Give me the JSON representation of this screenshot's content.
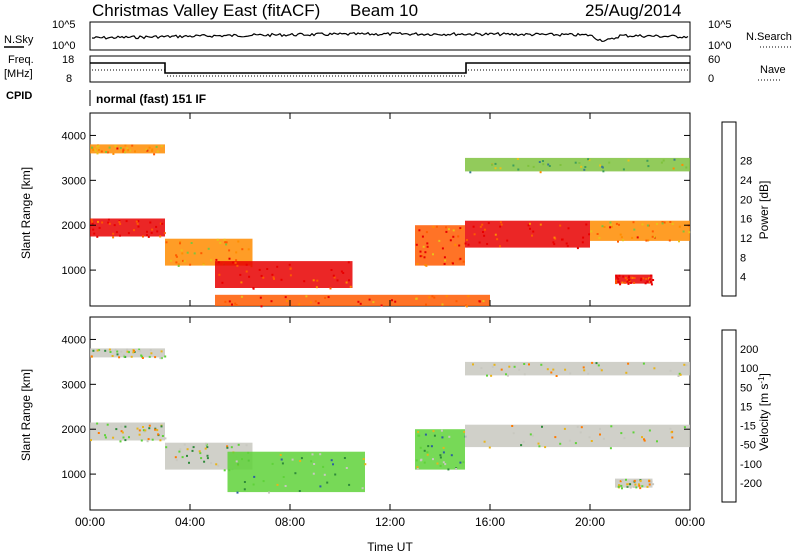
{
  "header": {
    "station": "Christmas Valley East (fitACF)",
    "beam": "Beam 10",
    "date": "25/Aug/2014"
  },
  "strip": {
    "nsky_label": "N.Sky",
    "nsky_ticks": [
      "10^5",
      "10^0"
    ],
    "nsearch_label": "N.Search",
    "nsearch_ticks": [
      "10^5",
      "10^0"
    ],
    "freq_label": "Freq.",
    "freq_unit": "[MHz]",
    "freq_ticks": [
      "18",
      "8"
    ],
    "nave_label": "Nave",
    "nave_ticks": [
      "60",
      "0"
    ],
    "cpid_label": "CPID",
    "cpid_value": "normal (fast) 151 IF"
  },
  "chart_data": [
    {
      "type": "heatmap",
      "panel": "power",
      "ylabel": "Slant Range [km]",
      "xlabel": "",
      "ylim": [
        200,
        4500
      ],
      "yticks": [
        1000,
        2000,
        3000,
        4000
      ],
      "colorbar": {
        "label": "Power [dB]",
        "ticks": [
          4,
          8,
          12,
          16,
          20,
          24,
          28
        ],
        "colors": [
          "#1a1aff",
          "#2d4fb0",
          "#3d7c8c",
          "#3f9e5a",
          "#7fc23e",
          "#e8c21a",
          "#ff8c00",
          "#ff5a00",
          "#e80000"
        ]
      },
      "bands": [
        {
          "t": [
            0.0,
            3.0
          ],
          "range": [
            3600,
            3800
          ],
          "dB": 20
        },
        {
          "t": [
            0.0,
            3.0
          ],
          "range": [
            1750,
            2150
          ],
          "dB": 26
        },
        {
          "t": [
            3.0,
            6.5
          ],
          "range": [
            1100,
            1700
          ],
          "dB": 22
        },
        {
          "t": [
            5.0,
            10.5
          ],
          "range": [
            600,
            1200
          ],
          "dB": 26
        },
        {
          "t": [
            13.0,
            15.0
          ],
          "range": [
            1100,
            2000
          ],
          "dB": 24
        },
        {
          "t": [
            15.0,
            20.0
          ],
          "range": [
            1500,
            2100
          ],
          "dB": 27
        },
        {
          "t": [
            20.0,
            24.0
          ],
          "range": [
            1650,
            2100
          ],
          "dB": 22
        },
        {
          "t": [
            21.0,
            22.5
          ],
          "range": [
            700,
            900
          ],
          "dB": 27
        },
        {
          "t": [
            15.0,
            24.0
          ],
          "range": [
            3200,
            3500
          ],
          "dB": 14
        },
        {
          "t": [
            5.0,
            16.0
          ],
          "range": [
            200,
            450
          ],
          "dB": 24
        }
      ]
    },
    {
      "type": "heatmap",
      "panel": "velocity",
      "ylabel": "Slant Range [km]",
      "xlabel": "Time UT",
      "ylim": [
        200,
        4500
      ],
      "yticks": [
        1000,
        2000,
        3000,
        4000
      ],
      "xticks": [
        "00:00",
        "04:00",
        "08:00",
        "12:00",
        "16:00",
        "20:00",
        "00:00"
      ],
      "colorbar": {
        "label": "Velocity [m s^-1]",
        "ticks": [
          200,
          100,
          50,
          15,
          -15,
          -50,
          -100,
          -200
        ],
        "colors": [
          "#1e1eb4",
          "#2d5fa0",
          "#2f8a3a",
          "#5fd23a",
          "#c8c8c0",
          "#e8b41a",
          "#ff7a00",
          "#ff3c00",
          "#e80000"
        ]
      },
      "bands": [
        {
          "t": [
            0.0,
            3.0
          ],
          "range": [
            1750,
            2150
          ],
          "v": 0
        },
        {
          "t": [
            3.0,
            6.5
          ],
          "range": [
            1100,
            1700
          ],
          "v": 0
        },
        {
          "t": [
            5.5,
            11.0
          ],
          "range": [
            600,
            1500
          ],
          "v": 40
        },
        {
          "t": [
            13.0,
            15.0
          ],
          "range": [
            1100,
            2000
          ],
          "v": 30
        },
        {
          "t": [
            15.0,
            24.0
          ],
          "range": [
            1600,
            2100
          ],
          "v": 0
        },
        {
          "t": [
            15.0,
            24.0
          ],
          "range": [
            3200,
            3500
          ],
          "v": 0
        },
        {
          "t": [
            21.0,
            22.5
          ],
          "range": [
            700,
            900
          ],
          "v": 0
        },
        {
          "t": [
            0.0,
            3.0
          ],
          "range": [
            3600,
            3800
          ],
          "v": 0
        }
      ]
    }
  ]
}
